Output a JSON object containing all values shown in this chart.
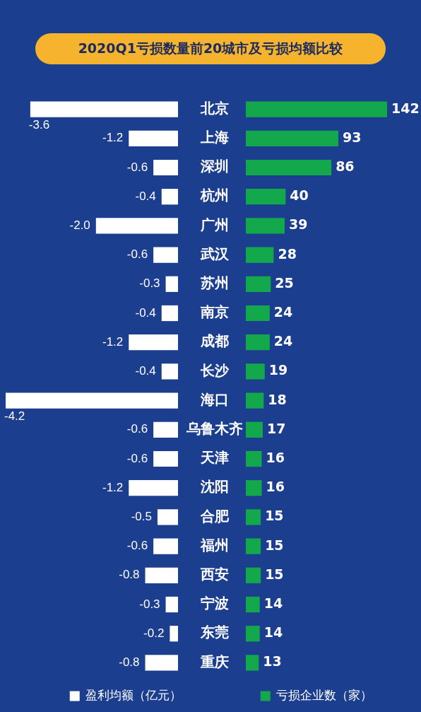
{
  "chart_data": [
    {
      "type": "bar",
      "orientation": "horizontal",
      "title": "2020Q1亏损数量前20城市及亏损均额比较",
      "categories": [
        "北京",
        "上海",
        "深圳",
        "杭州",
        "广州",
        "武汉",
        "苏州",
        "南京",
        "成都",
        "长沙",
        "海口",
        "乌鲁木齐",
        "天津",
        "沈阳",
        "合肥",
        "福州",
        "西安",
        "宁波",
        "东莞",
        "重庆"
      ],
      "series": [
        {
          "name": "盈利均额（亿元）",
          "color": "#ffffff",
          "values": [
            -3.6,
            -1.2,
            -0.6,
            -0.4,
            -2.0,
            -0.6,
            -0.3,
            -0.4,
            -1.2,
            -0.4,
            -4.2,
            -0.6,
            -0.6,
            -1.2,
            -0.5,
            -0.6,
            -0.8,
            -0.3,
            -0.2,
            -0.8
          ],
          "value_labels": [
            "-3.6",
            "-1.2",
            "-0.6",
            "-0.4",
            "-2.0",
            "-0.6",
            "-0.3",
            "-0.4",
            "-1.2",
            "-0.4",
            "-4.2",
            "-0.6",
            "-0.6",
            "-1.2",
            "-0.5",
            "-0.6",
            "-0.8",
            "-0.3",
            "-0.2",
            "-0.8"
          ]
        }
      ],
      "data_labels": true,
      "legend": "bottom"
    },
    {
      "type": "bar",
      "orientation": "horizontal",
      "categories": [
        null,
        null,
        null,
        null,
        null,
        null,
        null,
        null,
        null,
        null,
        null,
        null,
        null,
        null,
        null,
        null,
        null,
        null,
        null,
        null
      ],
      "series": [
        {
          "name": "亏损企业数（家）",
          "color": "#13a84b",
          "values": [
            142,
            93,
            86,
            40,
            39,
            28,
            25,
            24,
            24,
            19,
            18,
            17,
            16,
            16,
            15,
            15,
            15,
            14,
            14,
            13
          ]
        }
      ],
      "data_labels": true,
      "legend": "bottom",
      "tick_labels": false
    }
  ]
}
